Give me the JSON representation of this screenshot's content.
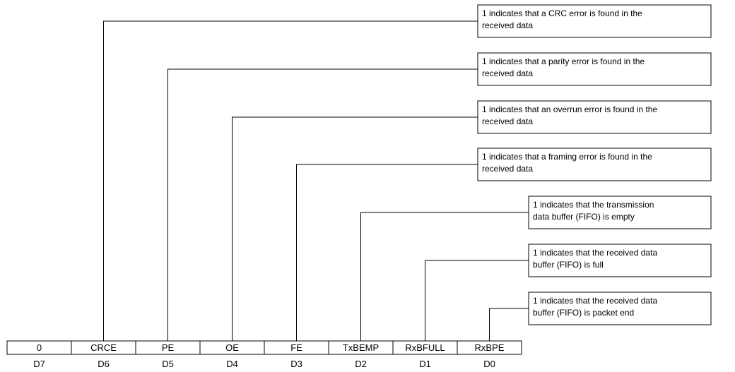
{
  "register": {
    "fields": [
      "0",
      "CRCE",
      "PE",
      "OE",
      "FE",
      "TxBEMP",
      "RxBFULL",
      "RxBPE"
    ],
    "bits": [
      "D7",
      "D6",
      "D5",
      "D4",
      "D3",
      "D2",
      "D1",
      "D0"
    ]
  },
  "descriptions": [
    {
      "bit": "D6",
      "lines": [
        "1 indicates that a CRC error is found in the",
        "received data"
      ]
    },
    {
      "bit": "D5",
      "lines": [
        "1 indicates that a parity error is found in the",
        "received data"
      ]
    },
    {
      "bit": "D4",
      "lines": [
        "1 indicates that an overrun error is found in the",
        "received data"
      ]
    },
    {
      "bit": "D3",
      "lines": [
        "1 indicates that a framing error is found in the",
        "received data"
      ]
    },
    {
      "bit": "D2",
      "lines": [
        "1 indicates that the transmission",
        "data buffer (FIFO) is empty"
      ]
    },
    {
      "bit": "D1",
      "lines": [
        "1 indicates that the received data",
        "buffer (FIFO) is full"
      ]
    },
    {
      "bit": "D0",
      "lines": [
        "1 indicates that the received data",
        "buffer (FIFO) is packet end"
      ]
    }
  ]
}
